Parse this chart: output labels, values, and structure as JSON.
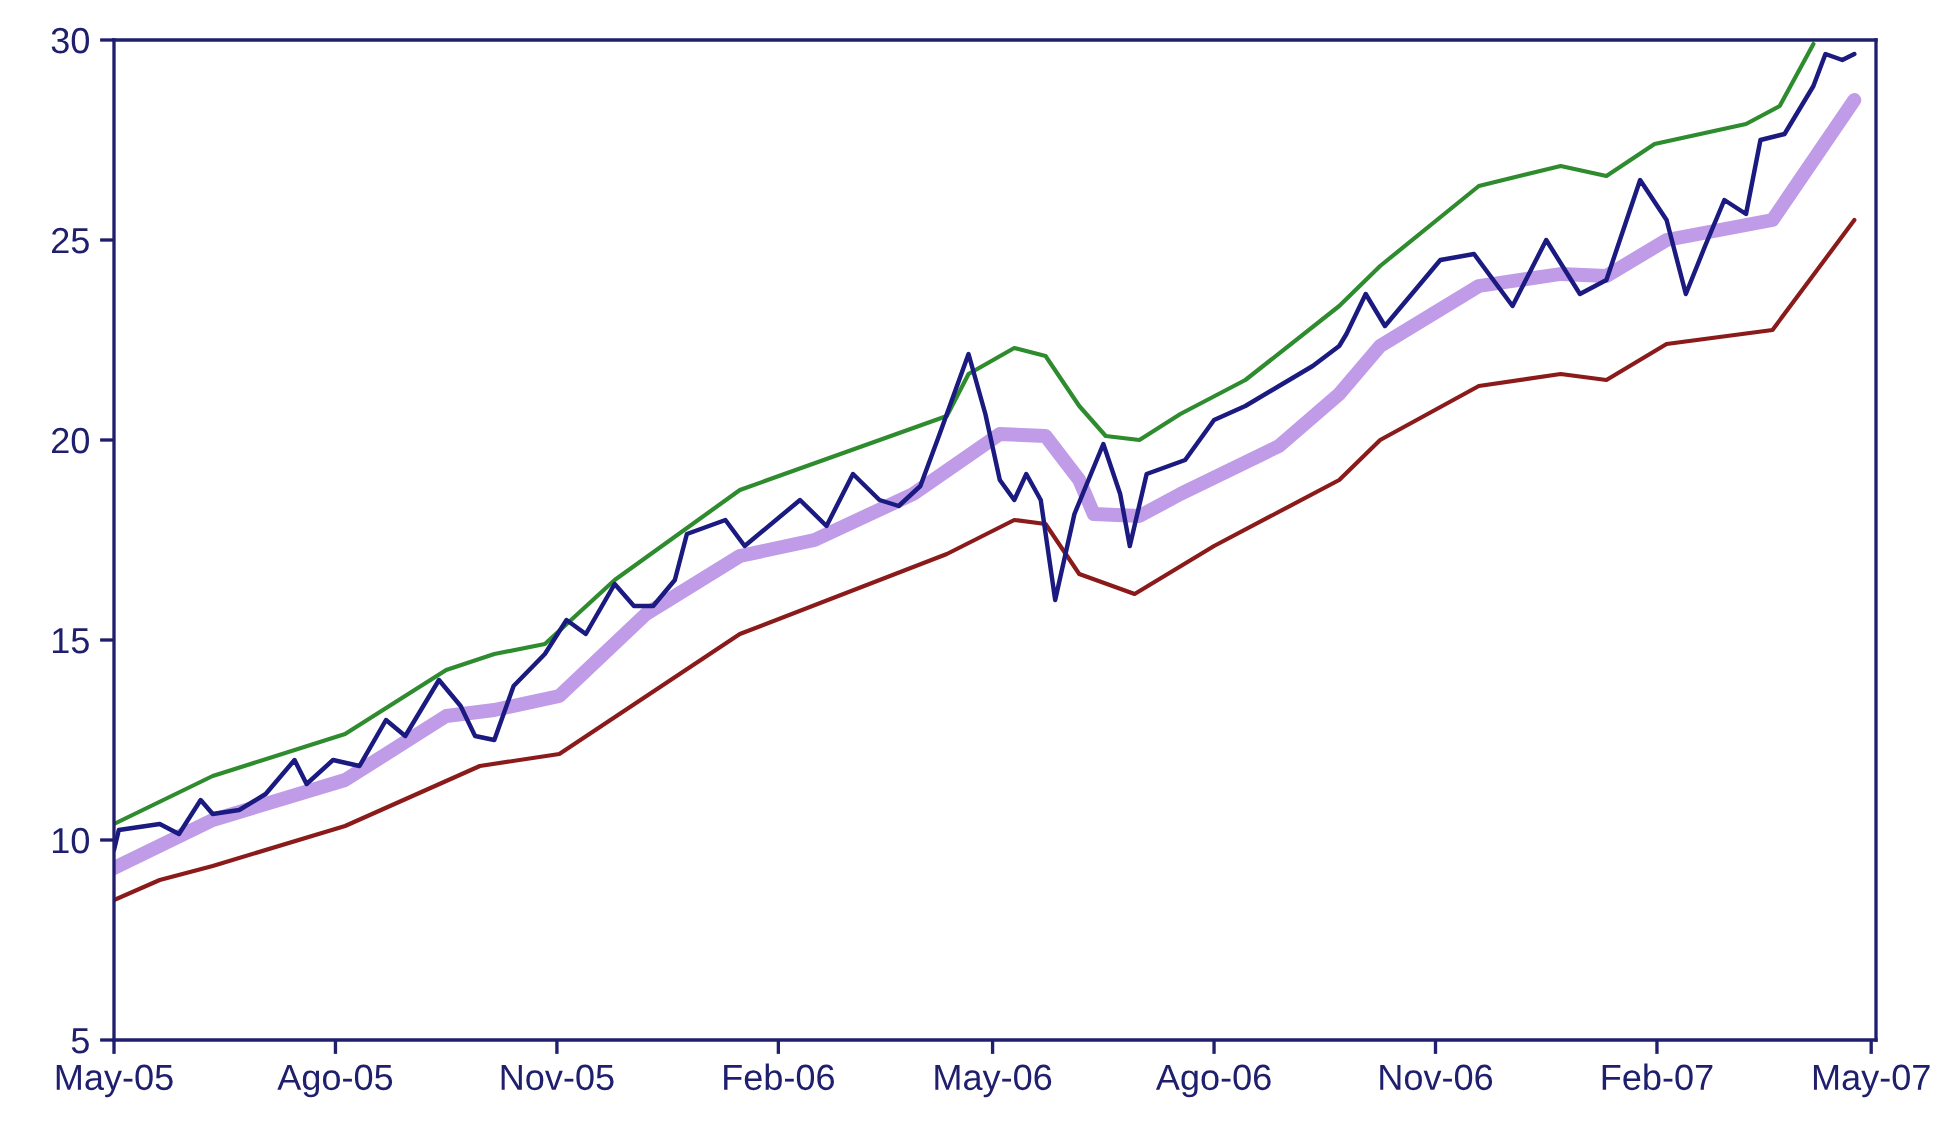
{
  "chart_data": {
    "type": "line",
    "xlim": [
      "2005-05-01",
      "2007-05-03"
    ],
    "xticks": [
      {
        "value": "2005-05-01",
        "label": "May-05"
      },
      {
        "value": "2005-08-01",
        "label": "Ago-05"
      },
      {
        "value": "2005-11-01",
        "label": "Nov-05"
      },
      {
        "value": "2006-02-01",
        "label": "Feb-06"
      },
      {
        "value": "2006-05-01",
        "label": "May-06"
      },
      {
        "value": "2006-08-01",
        "label": "Ago-06"
      },
      {
        "value": "2006-11-01",
        "label": "Nov-06"
      },
      {
        "value": "2007-02-01",
        "label": "Feb-07"
      },
      {
        "value": "2007-05-01",
        "label": "May-07"
      }
    ],
    "ylim": [
      5,
      30
    ],
    "yticks": [
      5,
      10,
      15,
      20,
      25,
      30
    ],
    "grid": false,
    "series": [
      {
        "color": "#2e8b2e",
        "x": [
          "2005-05-01",
          "2005-06-11",
          "2005-08-05",
          "2005-09-16",
          "2005-10-06",
          "2005-10-27",
          "2005-11-25",
          "2006-01-16",
          "2006-04-12",
          "2006-04-21",
          "2006-05-10",
          "2006-05-23",
          "2006-06-06",
          "2006-06-17",
          "2006-07-01",
          "2006-07-18",
          "2006-08-14",
          "2006-09-22",
          "2006-10-09",
          "2006-11-19",
          "2006-12-23",
          "2007-01-11",
          "2007-01-31",
          "2007-03-10",
          "2007-03-24",
          "2007-04-07"
        ],
        "values": [
          10.4,
          11.6,
          12.65,
          14.25,
          14.65,
          14.9,
          16.5,
          18.75,
          20.6,
          21.65,
          22.3,
          22.1,
          20.85,
          20.1,
          20.0,
          20.65,
          21.5,
          23.35,
          24.35,
          26.35,
          26.85,
          26.6,
          27.4,
          27.9,
          28.35,
          29.9
        ]
      },
      {
        "color": "#c09ce8",
        "x": [
          "2005-05-01",
          "2005-06-11",
          "2005-08-05",
          "2005-09-16",
          "2005-10-06",
          "2005-11-02",
          "2005-12-08",
          "2006-01-16",
          "2006-02-16",
          "2006-03-29",
          "2006-05-04",
          "2006-05-23",
          "2006-06-06",
          "2006-06-12",
          "2006-07-01",
          "2006-07-18",
          "2006-08-28",
          "2006-09-22",
          "2006-10-09",
          "2006-11-19",
          "2006-12-23",
          "2007-01-11",
          "2007-02-05",
          "2007-03-21",
          "2007-04-24"
        ],
        "values": [
          9.3,
          10.5,
          11.5,
          13.1,
          13.25,
          13.6,
          15.65,
          17.1,
          17.5,
          18.65,
          20.15,
          20.1,
          19.0,
          18.15,
          18.1,
          18.65,
          19.85,
          21.15,
          22.35,
          23.85,
          24.15,
          24.1,
          25.0,
          25.5,
          28.5
        ]
      },
      {
        "color": "#8b1a1a",
        "x": [
          "2005-05-01",
          "2005-05-20",
          "2005-06-11",
          "2005-08-05",
          "2005-09-30",
          "2005-11-02",
          "2006-01-16",
          "2006-04-12",
          "2006-05-10",
          "2006-05-23",
          "2006-06-06",
          "2006-06-29",
          "2006-08-01",
          "2006-09-22",
          "2006-10-09",
          "2006-11-19",
          "2006-12-23",
          "2007-01-11",
          "2007-02-05",
          "2007-03-21",
          "2007-04-24"
        ],
        "values": [
          8.5,
          9.0,
          9.35,
          10.35,
          11.85,
          12.15,
          15.15,
          17.15,
          18.0,
          17.9,
          16.65,
          16.15,
          17.35,
          19.0,
          20.0,
          21.35,
          21.65,
          21.5,
          22.4,
          22.75,
          25.5
        ]
      },
      {
        "color": "#1a1a80",
        "x": [
          "2005-05-01",
          "2005-05-03",
          "2005-05-20",
          "2005-05-28",
          "2005-06-06",
          "2005-06-11",
          "2005-06-22",
          "2005-07-03",
          "2005-07-15",
          "2005-07-20",
          "2005-07-31",
          "2005-08-11",
          "2005-08-22",
          "2005-08-30",
          "2005-09-13",
          "2005-09-22",
          "2005-09-28",
          "2005-10-06",
          "2005-10-14",
          "2005-10-27",
          "2005-11-05",
          "2005-11-13",
          "2005-11-25",
          "2005-12-03",
          "2005-12-11",
          "2005-12-20",
          "2005-12-25",
          "2006-01-10",
          "2006-01-18",
          "2006-02-10",
          "2006-02-21",
          "2006-03-04",
          "2006-03-15",
          "2006-03-23",
          "2006-04-01",
          "2006-04-09",
          "2006-04-21",
          "2006-04-28",
          "2006-05-04",
          "2006-05-10",
          "2006-05-15",
          "2006-05-21",
          "2006-05-27",
          "2006-06-04",
          "2006-06-16",
          "2006-06-23",
          "2006-06-27",
          "2006-07-04",
          "2006-07-20",
          "2006-08-01",
          "2006-08-14",
          "2006-08-28",
          "2006-09-11",
          "2006-09-22",
          "2006-09-25",
          "2006-10-03",
          "2006-10-11",
          "2006-11-03",
          "2006-11-17",
          "2006-12-03",
          "2006-12-17",
          "2006-12-31",
          "2007-01-11",
          "2007-01-25",
          "2007-02-05",
          "2007-02-13",
          "2007-02-21",
          "2007-03-01",
          "2007-03-10",
          "2007-03-16",
          "2007-03-26",
          "2007-04-07",
          "2007-04-12",
          "2007-04-19",
          "2007-04-24"
        ],
        "values": [
          9.75,
          10.25,
          10.4,
          10.15,
          11.0,
          10.65,
          10.75,
          11.15,
          12.0,
          11.4,
          12.0,
          11.85,
          13.0,
          12.6,
          14.0,
          13.35,
          12.6,
          12.5,
          13.85,
          14.65,
          15.5,
          15.15,
          16.4,
          15.85,
          15.85,
          16.5,
          17.65,
          18.0,
          17.35,
          18.5,
          17.85,
          19.15,
          18.5,
          18.35,
          18.85,
          20.15,
          22.15,
          20.65,
          19.0,
          18.5,
          19.15,
          18.5,
          16.0,
          18.15,
          19.9,
          18.65,
          17.35,
          19.15,
          19.5,
          20.5,
          20.85,
          21.35,
          21.85,
          22.35,
          22.65,
          23.65,
          22.85,
          24.5,
          24.65,
          23.35,
          25.0,
          23.65,
          24.0,
          26.5,
          25.5,
          23.65,
          24.85,
          26.0,
          25.65,
          27.5,
          27.65,
          28.85,
          29.65,
          29.5,
          29.65
        ]
      }
    ]
  }
}
